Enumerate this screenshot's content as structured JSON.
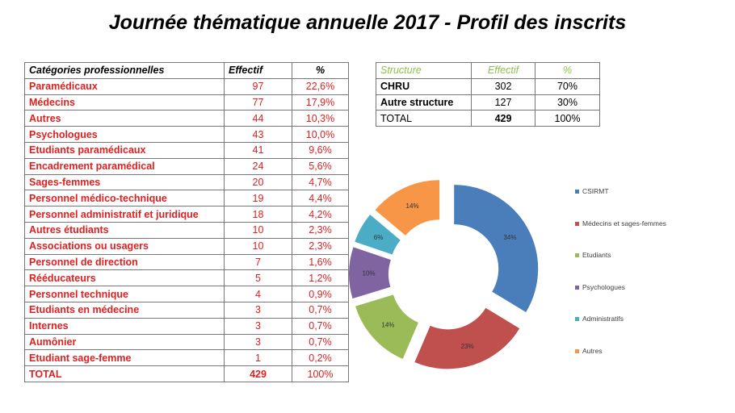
{
  "title": "Journée thématique annuelle 2017 - Profil des inscrits",
  "categories_table": {
    "headers": [
      "Catégories professionnelles",
      "Effectif",
      "%"
    ],
    "rows": [
      [
        "Paramédicaux",
        "97",
        "22,6%"
      ],
      [
        "Médecins",
        "77",
        "17,9%"
      ],
      [
        "Autres",
        "44",
        "10,3%"
      ],
      [
        "Psychologues",
        "43",
        "10,0%"
      ],
      [
        "Etudiants paramédicaux",
        "41",
        "9,6%"
      ],
      [
        "Encadrement paramédical",
        "24",
        "5,6%"
      ],
      [
        "Sages-femmes",
        "20",
        "4,7%"
      ],
      [
        "Personnel médico-technique",
        "19",
        "4,4%"
      ],
      [
        "Personnel administratif et juridique",
        "18",
        "4,2%"
      ],
      [
        "Autres étudiants",
        "10",
        "2,3%"
      ],
      [
        "Associations ou usagers",
        "10",
        "2,3%"
      ],
      [
        "Personnel de direction",
        "7",
        "1,6%"
      ],
      [
        "Rééducateurs",
        "5",
        "1,2%"
      ],
      [
        "Personnel technique",
        "4",
        "0,9%"
      ],
      [
        "Etudiants en médecine",
        "3",
        "0,7%"
      ],
      [
        "Internes",
        "3",
        "0,7%"
      ],
      [
        "Aumônier",
        "3",
        "0,7%"
      ],
      [
        "Etudiant sage-femme",
        "1",
        "0,2%"
      ]
    ],
    "total": [
      "TOTAL",
      "429",
      "100%"
    ]
  },
  "structure_table": {
    "headers": [
      "Structure",
      "Effectif",
      "%"
    ],
    "rows": [
      [
        "CHRU",
        "302",
        "70%"
      ],
      [
        "Autre structure",
        "127",
        "30%"
      ]
    ],
    "total": [
      "TOTAL",
      "429",
      "100%"
    ]
  },
  "chart_data": {
    "type": "pie",
    "subtype": "exploded-donut",
    "legend_position": "right",
    "slices": [
      {
        "label": "CSIRMT",
        "value": 34,
        "display": "34%",
        "color": "#4a7ebb"
      },
      {
        "label": "Médecins et sages-femmes",
        "value": 23,
        "display": "23%",
        "color": "#c0504d"
      },
      {
        "label": "Etudiants",
        "value": 14,
        "display": "14%",
        "color": "#9bbb59"
      },
      {
        "label": "Psychologues",
        "value": 10,
        "display": "10%",
        "color": "#8064a2"
      },
      {
        "label": "Administratifs",
        "value": 6,
        "display": "6%",
        "color": "#4bacc6"
      },
      {
        "label": "Autres",
        "value": 14,
        "display": "14%",
        "color": "#f79646"
      }
    ]
  }
}
